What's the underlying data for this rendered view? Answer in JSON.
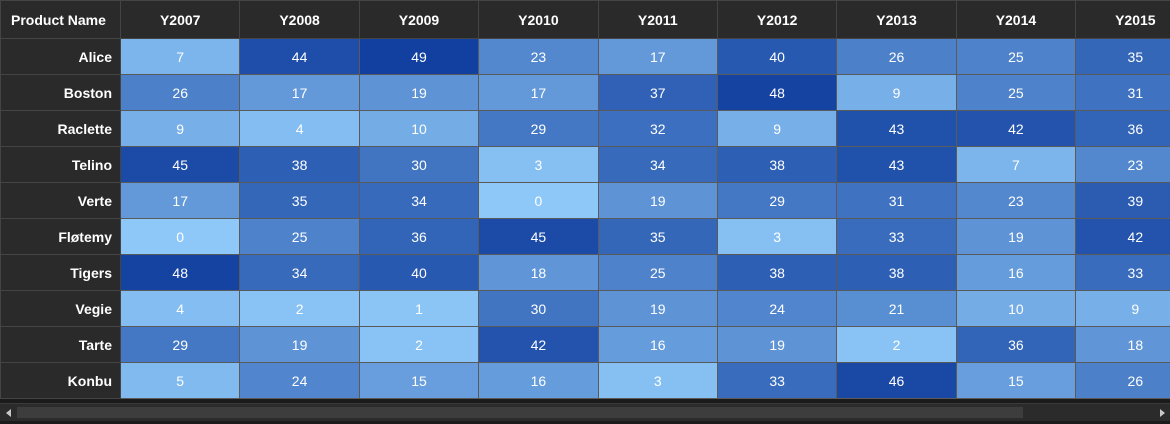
{
  "grid": {
    "header_label": "Product Name",
    "years": [
      "Y2007",
      "Y2008",
      "Y2009",
      "Y2010",
      "Y2011",
      "Y2012",
      "Y2013",
      "Y2014",
      "Y2015"
    ],
    "rows": [
      {
        "name": "Alice",
        "values": [
          7,
          44,
          49,
          23,
          17,
          40,
          26,
          25,
          35
        ]
      },
      {
        "name": "Boston",
        "values": [
          26,
          17,
          19,
          17,
          37,
          48,
          9,
          25,
          31
        ]
      },
      {
        "name": "Raclette",
        "values": [
          9,
          4,
          10,
          29,
          32,
          9,
          43,
          42,
          36
        ]
      },
      {
        "name": "Telino",
        "values": [
          45,
          38,
          30,
          3,
          34,
          38,
          43,
          7,
          23
        ]
      },
      {
        "name": "Verte",
        "values": [
          17,
          35,
          34,
          0,
          19,
          29,
          31,
          23,
          39
        ]
      },
      {
        "name": "Fløtemy",
        "values": [
          0,
          25,
          36,
          45,
          35,
          3,
          33,
          19,
          42
        ]
      },
      {
        "name": "Tigers",
        "values": [
          48,
          34,
          40,
          18,
          25,
          38,
          38,
          16,
          33
        ]
      },
      {
        "name": "Vegie",
        "values": [
          4,
          2,
          1,
          30,
          19,
          24,
          21,
          10,
          9
        ]
      },
      {
        "name": "Tarte",
        "values": [
          29,
          19,
          2,
          42,
          16,
          19,
          2,
          36,
          18
        ]
      },
      {
        "name": "Konbu",
        "values": [
          5,
          24,
          15,
          16,
          3,
          33,
          46,
          15,
          26
        ]
      }
    ]
  },
  "colors": {
    "low": "#8ec8f8",
    "high": "#1140a0",
    "header_bg": "#2a2a2a",
    "background": "#1b1b1b"
  },
  "value_range": [
    0,
    49
  ],
  "scrollbar": {
    "left_icon": "scroll-left-icon",
    "right_icon": "scroll-right-icon"
  }
}
